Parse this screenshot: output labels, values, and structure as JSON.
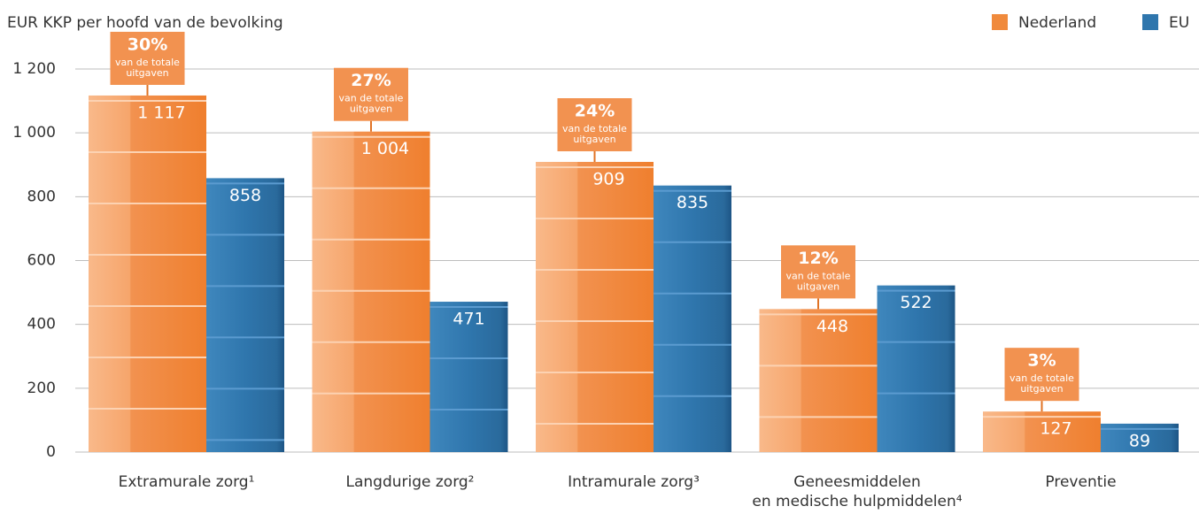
{
  "chart_data": {
    "type": "bar",
    "y_axis_title": "EUR KKP per hoofd van de bevolking",
    "categories": [
      "Extramurale zorg¹",
      "Langdurige zorg²",
      "Intramurale zorg³",
      "Geneesmiddelen\nen medische hulpmiddelen⁴",
      "Preventie"
    ],
    "series": [
      {
        "name": "Nederland",
        "color": "#f08a3c",
        "values": [
          1117,
          1004,
          909,
          448,
          127
        ],
        "value_labels": [
          "1 117",
          "1 004",
          "909",
          "448",
          "127"
        ]
      },
      {
        "name": "EU",
        "color": "#2f76ad",
        "values": [
          858,
          471,
          835,
          522,
          89
        ]
      }
    ],
    "shares": [
      {
        "value": 30,
        "label": "30%"
      },
      {
        "value": 27,
        "label": "27%"
      },
      {
        "value": 24,
        "label": "24%"
      },
      {
        "value": 12,
        "label": "12%"
      },
      {
        "value": 3,
        "label": "3%"
      }
    ],
    "share_note": [
      "van de totale",
      "uitgaven"
    ],
    "ylim": [
      0,
      1200
    ],
    "yticks": [
      0,
      200,
      400,
      600,
      800,
      {
        "value": 1000,
        "label": "1 000"
      },
      {
        "value": 1200,
        "label": "1 200"
      }
    ],
    "grid": true,
    "legend": "top-right"
  }
}
